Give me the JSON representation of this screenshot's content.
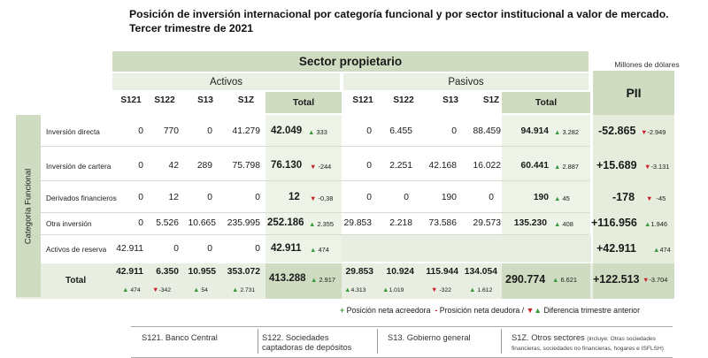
{
  "title": {
    "line1": "Posición de inversión internacional por categoría funcional y por sector institucional a valor de mercado.",
    "line2": "Tercer trimestre de 2021"
  },
  "units": "Millones de dólares",
  "headers": {
    "sector": "Sector propietario",
    "activos": "Activos",
    "pasivos": "Pasivos",
    "pii": "PII",
    "cols": [
      "S121",
      "S122",
      "S13",
      "S1Z",
      "Total"
    ],
    "category": "Categoría Funcional"
  },
  "rows": [
    {
      "label": "Inversión directa",
      "activos": [
        "0",
        "770",
        "0",
        "41.279"
      ],
      "activos_total": "42.049",
      "activos_delta": "333",
      "activos_dir": "up",
      "pasivos": [
        "0",
        "6.455",
        "0",
        "88.459"
      ],
      "pasivos_total": "94.914",
      "pasivos_delta": "3.282",
      "pasivos_dir": "up",
      "pii": "-52.865",
      "pii_delta": "-2.949",
      "pii_dir": "down"
    },
    {
      "label": "Inversión de cartera",
      "activos": [
        "0",
        "42",
        "289",
        "75.798"
      ],
      "activos_total": "76.130",
      "activos_delta": "-244",
      "activos_dir": "down",
      "pasivos": [
        "0",
        "2.251",
        "42.168",
        "16.022"
      ],
      "pasivos_total": "60.441",
      "pasivos_delta": "2.887",
      "pasivos_dir": "up",
      "pii": "+15.689",
      "pii_delta": "-3.131",
      "pii_dir": "down"
    },
    {
      "label": "Derivados financieros",
      "activos": [
        "0",
        "12",
        "0",
        "0"
      ],
      "activos_total": "12",
      "activos_delta": "-0,38",
      "activos_dir": "down",
      "pasivos": [
        "0",
        "0",
        "190",
        "0"
      ],
      "pasivos_total": "190",
      "pasivos_delta": "45",
      "pasivos_dir": "up",
      "pii": "-178",
      "pii_delta": "-45",
      "pii_dir": "down"
    },
    {
      "label": "Otra inversión",
      "activos": [
        "0",
        "5.526",
        "10.665",
        "235.995"
      ],
      "activos_total": "252.186",
      "activos_delta": "2.355",
      "activos_dir": "up",
      "pasivos": [
        "29.853",
        "2.218",
        "73.586",
        "29.573"
      ],
      "pasivos_total": "135.230",
      "pasivos_delta": "408",
      "pasivos_dir": "up",
      "pii": "+116.956",
      "pii_delta": "1.946",
      "pii_dir": "up"
    },
    {
      "label": "Activos de reserva",
      "activos": [
        "42.911",
        "0",
        "0",
        "0"
      ],
      "activos_total": "42.911",
      "activos_delta": "474",
      "activos_dir": "up",
      "pii": "+42.911",
      "pii_delta": "474",
      "pii_dir": "up"
    }
  ],
  "total": {
    "label": "Total",
    "activos": [
      "42.911",
      "6.350",
      "10.955",
      "353.072"
    ],
    "activos_deltas": [
      "474",
      "-342",
      "54",
      "2.731"
    ],
    "activos_dirs": [
      "up",
      "down",
      "up",
      "up"
    ],
    "activos_total": "413.288",
    "activos_total_delta": "2.917",
    "activos_total_dir": "up",
    "pasivos": [
      "29.853",
      "10.924",
      "115.944",
      "134.054"
    ],
    "pasivos_deltas": [
      "4.313",
      "1.019",
      "-322",
      "1.612"
    ],
    "pasivos_dirs": [
      "up",
      "up",
      "down",
      "up"
    ],
    "pasivos_total": "290.774",
    "pasivos_total_delta": "6.621",
    "pasivos_total_dir": "up",
    "pii": "+122.513",
    "pii_delta": "-3.704",
    "pii_dir": "down"
  },
  "legend": {
    "plus": "+",
    "plus_text": "Posición neta acreedora",
    "minus": "-",
    "minus_text": "Prosición neta deudora /",
    "arrows_text": "Diferencia trimestre anterior"
  },
  "glossary": {
    "s121": "S121. Banco Central",
    "s122_l1": "S122. Sociedades",
    "s122_l2": "captadoras de depósitos",
    "s13": "S13. Gobierno general",
    "s1z": "S1Z. Otros sectores",
    "s1z_note1": "(incluye: Otras sociedades",
    "s1z_note2": "financieras, sociedades no financieras, hogares e ISFLSH)"
  },
  "colors": {
    "green": "#3b9a3b",
    "red": "#c8202a",
    "band": "#cfdcc1"
  }
}
